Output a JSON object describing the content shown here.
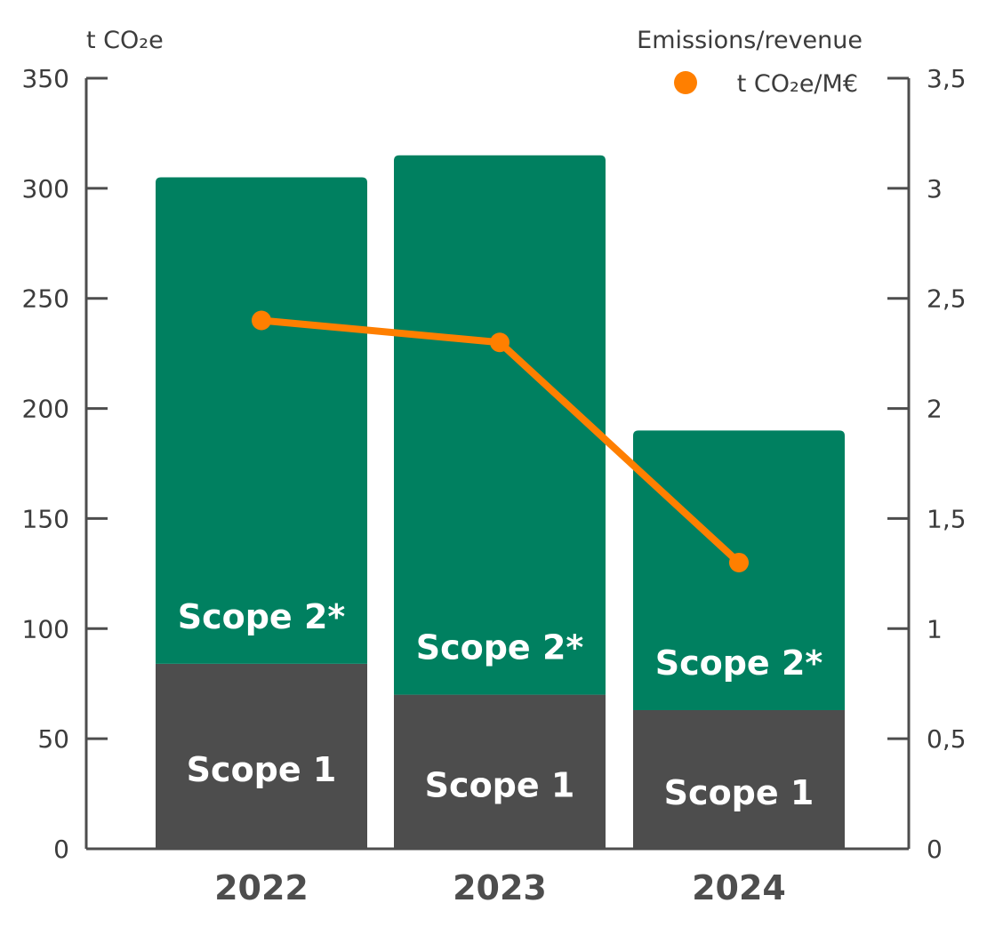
{
  "chart_data": {
    "type": "bar",
    "stacked": true,
    "categories": [
      "2022",
      "2023",
      "2024"
    ],
    "series": [
      {
        "name": "Scope 1",
        "values": [
          84,
          70,
          63
        ],
        "color": "#4d4d4d"
      },
      {
        "name": "Scope 2*",
        "values": [
          221,
          245,
          127
        ],
        "color": "#008060"
      }
    ],
    "line_series": {
      "name": "t CO₂e/M€",
      "axis": "right",
      "values": [
        2.4,
        2.3,
        1.3
      ],
      "color": "#ff7f00"
    },
    "left_axis": {
      "unit": "t CO₂e",
      "ylim": [
        0,
        350
      ],
      "ticks": [
        0,
        50,
        100,
        150,
        200,
        250,
        300,
        350
      ],
      "tick_labels": [
        "0",
        "50",
        "100",
        "150",
        "200",
        "250",
        "300",
        "350"
      ]
    },
    "right_axis": {
      "ylim": [
        0,
        3.5
      ],
      "ticks": [
        0,
        0.5,
        1,
        1.5,
        2,
        2.5,
        3,
        3.5
      ],
      "tick_labels": [
        "0",
        "0,5",
        "1",
        "1,5",
        "2",
        "2,5",
        "3",
        "3,5"
      ]
    },
    "legend": {
      "title": "Emissions/revenue",
      "entry": "t CO₂e/M€",
      "position": "top-right"
    },
    "grid": false
  }
}
